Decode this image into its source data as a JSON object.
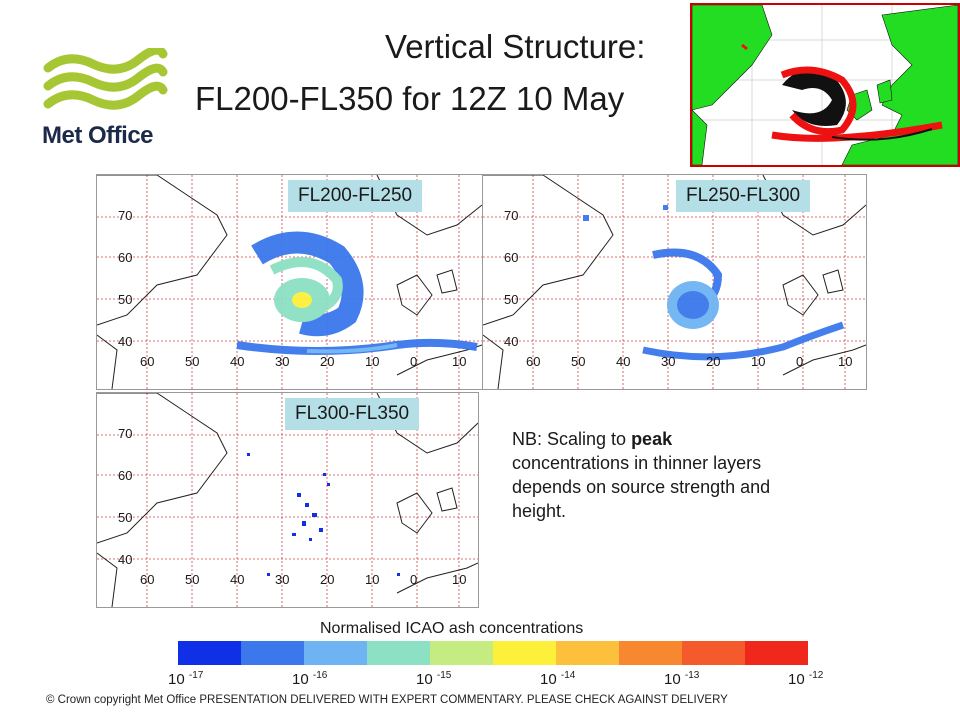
{
  "logo": {
    "text": "Met Office",
    "color": "#a6c733"
  },
  "title": {
    "line1": "Vertical Structure:",
    "line2": "FL200-FL350 for 12Z 10 May"
  },
  "panels": [
    {
      "label": "FL200-FL250"
    },
    {
      "label": "FL250-FL300"
    },
    {
      "label": "FL300-FL350"
    }
  ],
  "map_axes": {
    "lat_ticks": [
      "70",
      "60",
      "50",
      "40"
    ],
    "lon_ticks": [
      "60",
      "50",
      "40",
      "30",
      "20",
      "10",
      "0",
      "10"
    ]
  },
  "note": {
    "prefix": "NB: Scaling to ",
    "bold": "peak",
    "suffix": " concentrations in thinner layers depends on source strength and height."
  },
  "colorbar": {
    "title": "Normalised ICAO ash concentrations",
    "colors": [
      "#1030e8",
      "#3a78ec",
      "#6eb4f2",
      "#8ce0c4",
      "#c4ec80",
      "#fcf03a",
      "#fcc03c",
      "#f88830",
      "#f45a2c",
      "#f0281c"
    ],
    "ticks": [
      {
        "base": "10",
        "exp": "-17"
      },
      {
        "base": "10",
        "exp": "-16"
      },
      {
        "base": "10",
        "exp": "-15"
      },
      {
        "base": "10",
        "exp": "-14"
      },
      {
        "base": "10",
        "exp": "-13"
      },
      {
        "base": "10",
        "exp": "-12"
      }
    ]
  },
  "footer": "© Crown copyright   Met Office PRESENTATION DELIVERED WITH EXPERT COMMENTARY.  PLEASE CHECK AGAINST DELIVERY"
}
